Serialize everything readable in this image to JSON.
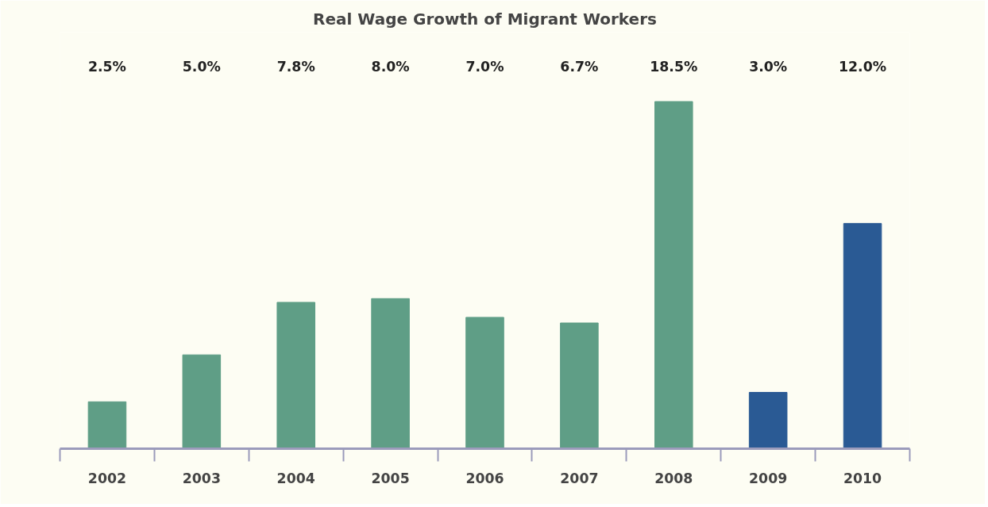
{
  "chart_data": {
    "type": "bar",
    "title": "Real Wage Growth of Migrant Workers",
    "categories": [
      "2002",
      "2003",
      "2004",
      "2005",
      "2006",
      "2007",
      "2008",
      "2009",
      "2010"
    ],
    "values": [
      2.5,
      5.0,
      7.8,
      8.0,
      7.0,
      6.7,
      18.5,
      3.0,
      12.0
    ],
    "colors": [
      "#5f9e86",
      "#5f9e86",
      "#5f9e86",
      "#5f9e86",
      "#5f9e86",
      "#5f9e86",
      "#5f9e86",
      "#2a5a94",
      "#2a5a94"
    ],
    "value_labels": [
      "2.5%",
      "5.0%",
      "7.8%",
      "8.0%",
      "7.0%",
      "6.7%",
      "18.5%",
      "3.0%",
      "12.0%"
    ],
    "data_labels": true
  }
}
